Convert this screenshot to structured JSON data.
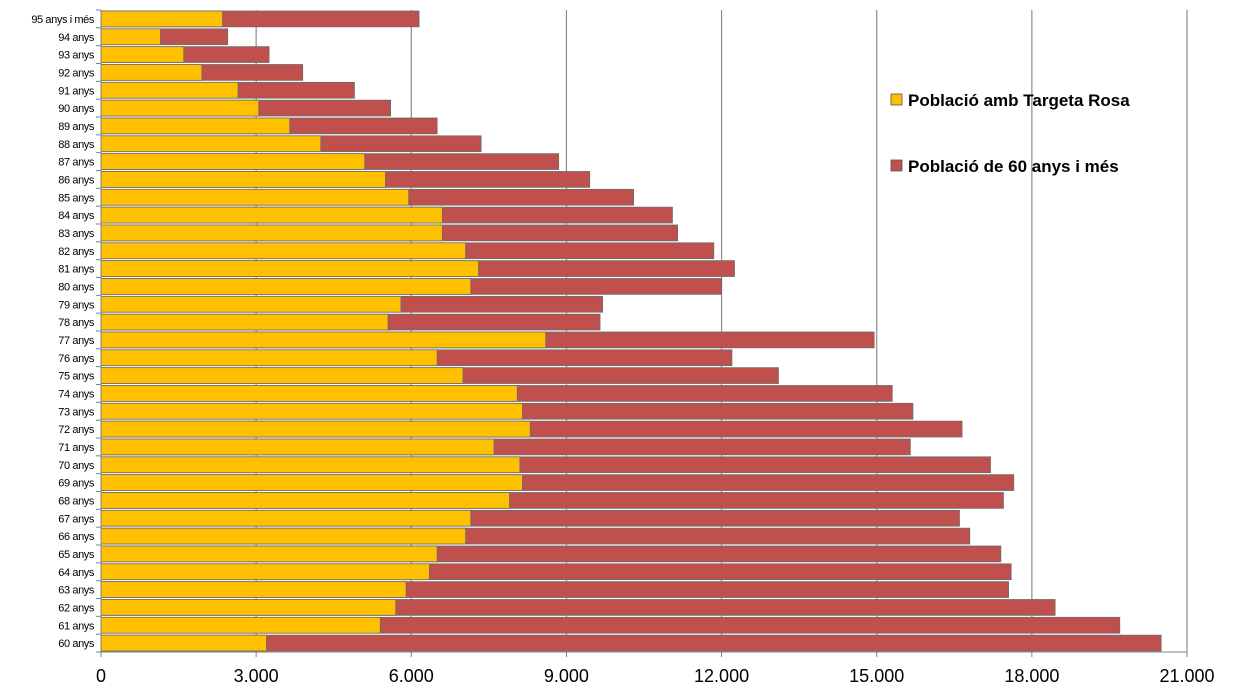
{
  "chart_data": {
    "type": "bar",
    "orientation": "horizontal",
    "stacked": false,
    "overlapping": true,
    "categories": [
      "60 anys",
      "61 anys",
      "62 anys",
      "63 anys",
      "64 anys",
      "65 anys",
      "66 anys",
      "67 anys",
      "68 anys",
      "69 anys",
      "70 anys",
      "71 anys",
      "72 anys",
      "73 anys",
      "74 anys",
      "75 anys",
      "76 anys",
      "77 anys",
      "78 anys",
      "79 anys",
      "80 anys",
      "81 anys",
      "82 anys",
      "83 anys",
      "84 anys",
      "85 anys",
      "86 anys",
      "87 anys",
      "88 anys",
      "89 anys",
      "90 anys",
      "91 anys",
      "92 anys",
      "93 anys",
      "94 anys",
      "95 anys i més"
    ],
    "series": [
      {
        "name": "Població de 60 anys i més",
        "color": "#c0504d",
        "values": [
          20500,
          19700,
          18450,
          17550,
          17600,
          17400,
          16800,
          16600,
          17450,
          17650,
          17200,
          15650,
          16650,
          15700,
          15300,
          13100,
          12200,
          14950,
          9650,
          9700,
          12000,
          12250,
          11850,
          11150,
          11050,
          10300,
          9450,
          8850,
          7350,
          6500,
          5600,
          4900,
          3900,
          3250,
          2450,
          6150
        ]
      },
      {
        "name": "Població amb Targeta Rosa",
        "color": "#ffc000",
        "values": [
          3200,
          5400,
          5700,
          5900,
          6350,
          6500,
          7050,
          7150,
          7900,
          8150,
          8100,
          7600,
          8300,
          8150,
          8050,
          7000,
          6500,
          8600,
          5550,
          5800,
          7150,
          7300,
          7050,
          6600,
          6600,
          5950,
          5500,
          5100,
          4250,
          3650,
          3050,
          2650,
          1950,
          1600,
          1150,
          2350
        ]
      }
    ],
    "xlim": [
      0,
      21000
    ],
    "xticks": [
      "0",
      "3.000",
      "6.000",
      "9.000",
      "12.000",
      "15.000",
      "18.000",
      "21.000"
    ],
    "grid": "vertical",
    "legend_position": "right",
    "legend": [
      "Població amb Targeta Rosa",
      "Població de 60 anys i més"
    ],
    "title": "",
    "xlabel": "",
    "ylabel": ""
  }
}
